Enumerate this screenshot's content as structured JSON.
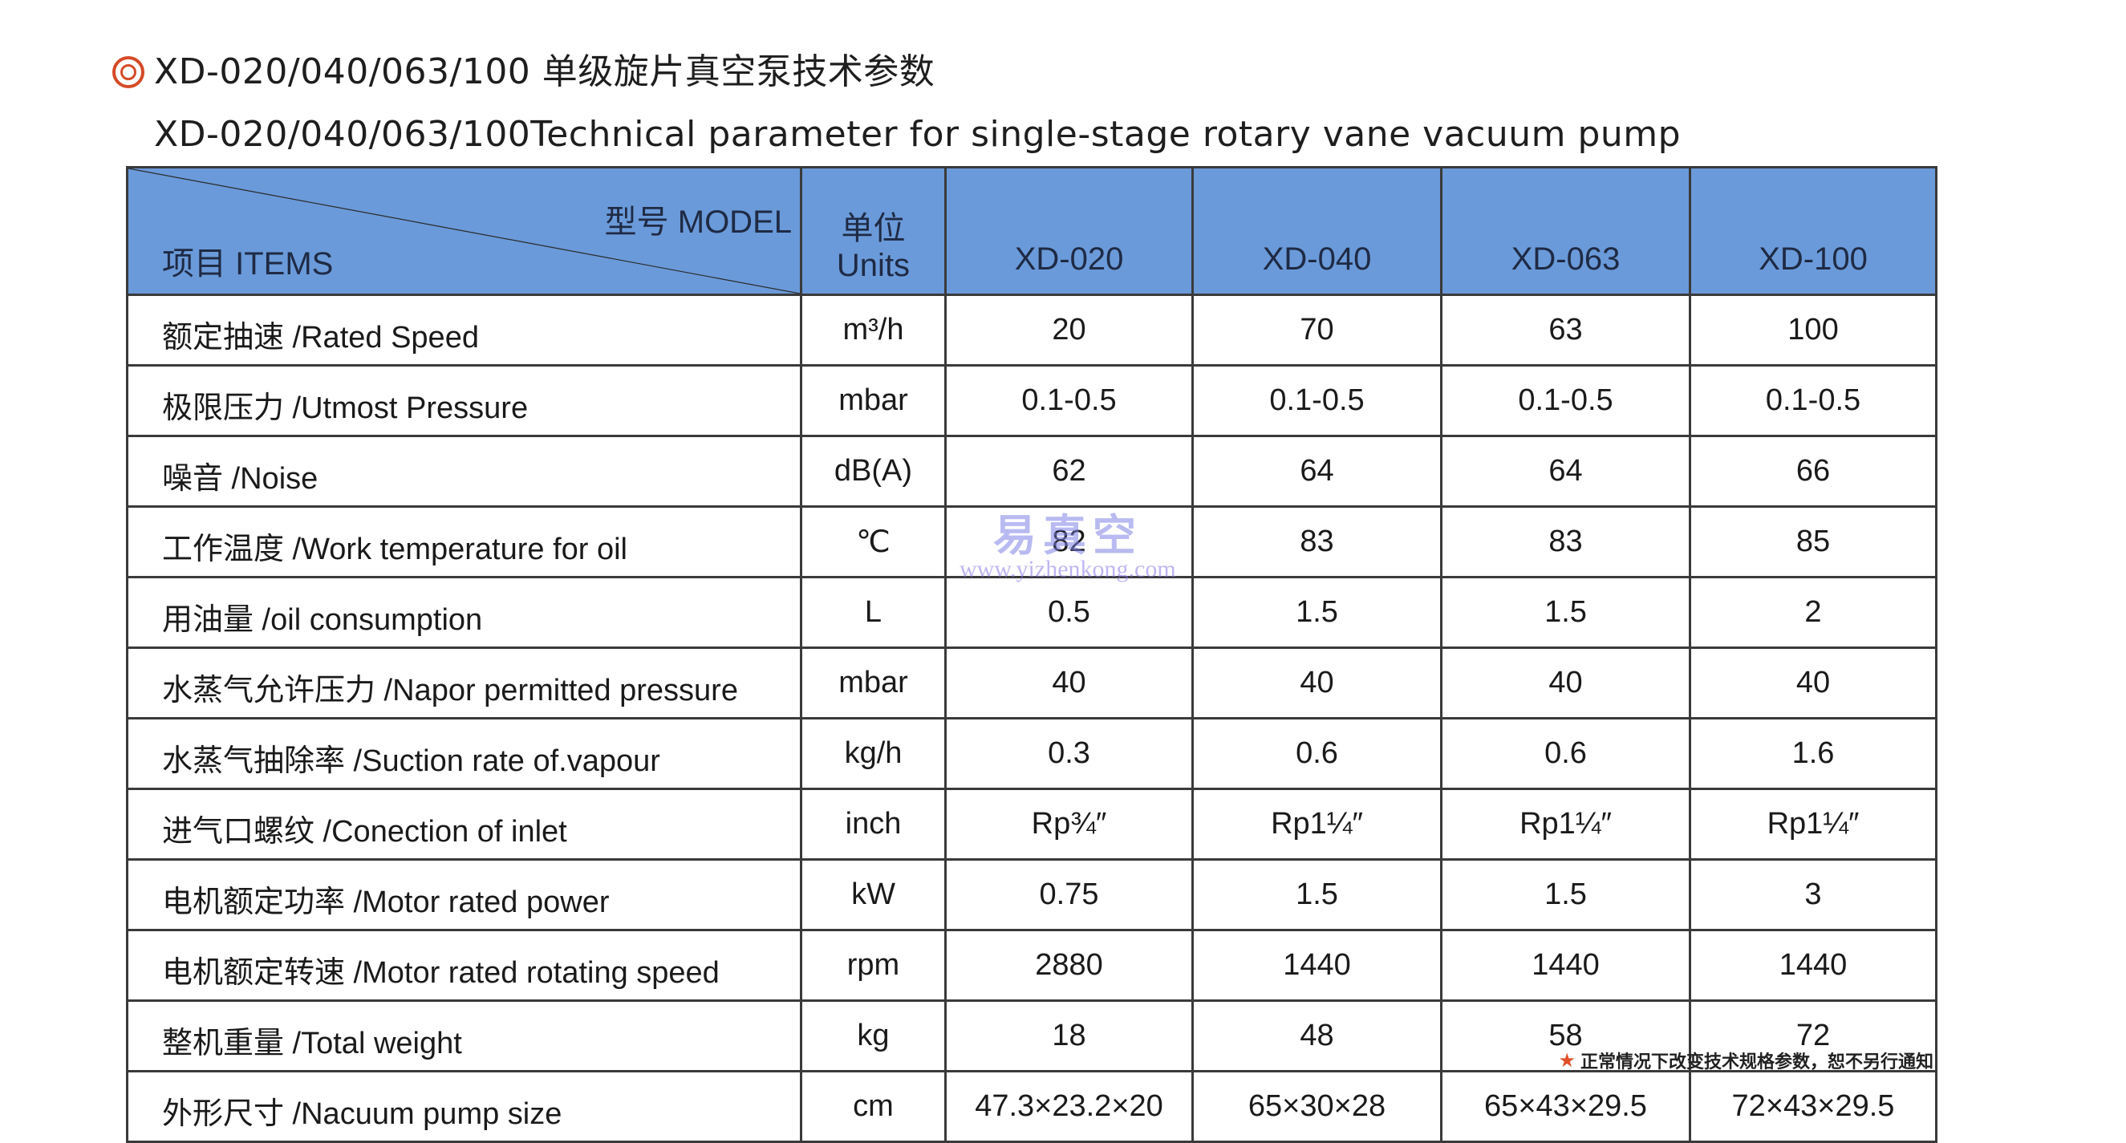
{
  "title": {
    "cn": "XD-020/040/063/100 单级旋片真空泵技术参数",
    "en": "XD-020/040/063/100Technical parameter for single-stage rotary vane vacuum pump"
  },
  "table": {
    "header": {
      "model_label": "型号 MODEL",
      "items_label": "项目 ITEMS",
      "units_cn": "单位",
      "units_en": "Units",
      "models": [
        "XD-020",
        "XD-040",
        "XD-063",
        "XD-100"
      ]
    },
    "rows": [
      {
        "item": "额定抽速 /Rated Speed",
        "unit": "m³/h",
        "values": [
          "20",
          "70",
          "63",
          "100"
        ]
      },
      {
        "item": "极限压力 /Utmost Pressure",
        "unit": "mbar",
        "values": [
          "0.1-0.5",
          "0.1-0.5",
          "0.1-0.5",
          "0.1-0.5"
        ]
      },
      {
        "item": "噪音 /Noise",
        "unit": "dB(A)",
        "values": [
          "62",
          "64",
          "64",
          "66"
        ]
      },
      {
        "item": "工作温度 /Work temperature for oil",
        "unit": "℃",
        "values": [
          "82",
          "83",
          "83",
          "85"
        ]
      },
      {
        "item": "用油量 /oil consumption",
        "unit": "L",
        "values": [
          "0.5",
          "1.5",
          "1.5",
          "2"
        ]
      },
      {
        "item": "水蒸气允许压力 /Napor permitted pressure",
        "unit": "mbar",
        "values": [
          "40",
          "40",
          "40",
          "40"
        ]
      },
      {
        "item": "水蒸气抽除率 /Suction rate of.vapour",
        "unit": "kg/h",
        "values": [
          "0.3",
          "0.6",
          "0.6",
          "1.6"
        ]
      },
      {
        "item": "进气口螺纹 /Conection of inlet",
        "unit": "inch",
        "values": [
          "Rp¾″",
          "Rp1¼″",
          "Rp1¼″",
          "Rp1¼″"
        ]
      },
      {
        "item": "电机额定功率 /Motor rated power",
        "unit": "kW",
        "values": [
          "0.75",
          "1.5",
          "1.5",
          "3"
        ]
      },
      {
        "item": "电机额定转速 /Motor rated rotating speed",
        "unit": "rpm",
        "values": [
          "2880",
          "1440",
          "1440",
          "1440"
        ]
      },
      {
        "item": "整机重量 /Total weight",
        "unit": "kg",
        "values": [
          "18",
          "48",
          "58",
          "72"
        ]
      },
      {
        "item": "外形尺寸 /Nacuum pump size",
        "unit": "cm",
        "values": [
          "47.3×23.2×20",
          "65×30×28",
          "65×43×29.5",
          "72×43×29.5"
        ]
      }
    ]
  },
  "watermark": {
    "cn": "易真空",
    "url": "www.yizhenkong.com"
  },
  "footnote": "正常情况下改变技术规格参数，恕不另行通知",
  "colors": {
    "header_bg": "#6a9ad9",
    "accent": "#d64a27",
    "border": "#3a3a3a"
  },
  "icons": {
    "title_bullet": "double-circle-icon",
    "footnote_star": "star-icon"
  }
}
